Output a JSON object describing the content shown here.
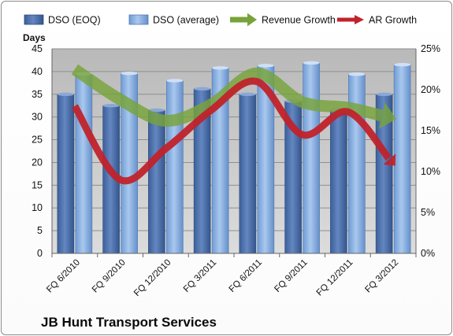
{
  "chart_data": {
    "type": "bar",
    "title": "JB Hunt Transport Services",
    "ylabel": "Days",
    "ylim": [
      0,
      45
    ],
    "yticks": [
      0,
      5,
      10,
      15,
      20,
      25,
      30,
      35,
      40,
      45
    ],
    "y2lim": [
      0,
      25
    ],
    "y2ticks": [
      "0%",
      "5%",
      "10%",
      "15%",
      "20%",
      "25%"
    ],
    "categories": [
      "FQ 6/2010",
      "FQ 9/2010",
      "FQ 12/2010",
      "FQ 3/2011",
      "FQ 6/2011",
      "FQ 9/2011",
      "FQ 12/2011",
      "FQ 3/2012"
    ],
    "series": [
      {
        "name": "DSO (EOQ)",
        "kind": "bar",
        "axis": "left",
        "color": "#4a6ea8",
        "values": [
          35,
          32.5,
          31.5,
          36.2,
          35,
          33.5,
          31.5,
          35
        ]
      },
      {
        "name": "DSO (average)",
        "kind": "bar",
        "axis": "left",
        "color": "#8db3e2",
        "values": [
          39.5,
          39.6,
          38,
          40.8,
          41.3,
          41.9,
          39.4,
          41.5
        ]
      },
      {
        "name": "Revenue Growth",
        "kind": "arrow",
        "axis": "right",
        "color": "#77a33a",
        "values": [
          22.5,
          18.8,
          16.2,
          18.2,
          22,
          18.5,
          17.8,
          16.5
        ]
      },
      {
        "name": "AR Growth",
        "kind": "arrow",
        "axis": "right",
        "color": "#c0232b",
        "values": [
          18,
          9,
          12.8,
          17.5,
          21,
          14.5,
          17.3,
          11
        ]
      }
    ],
    "grid": true,
    "legend": "top"
  }
}
